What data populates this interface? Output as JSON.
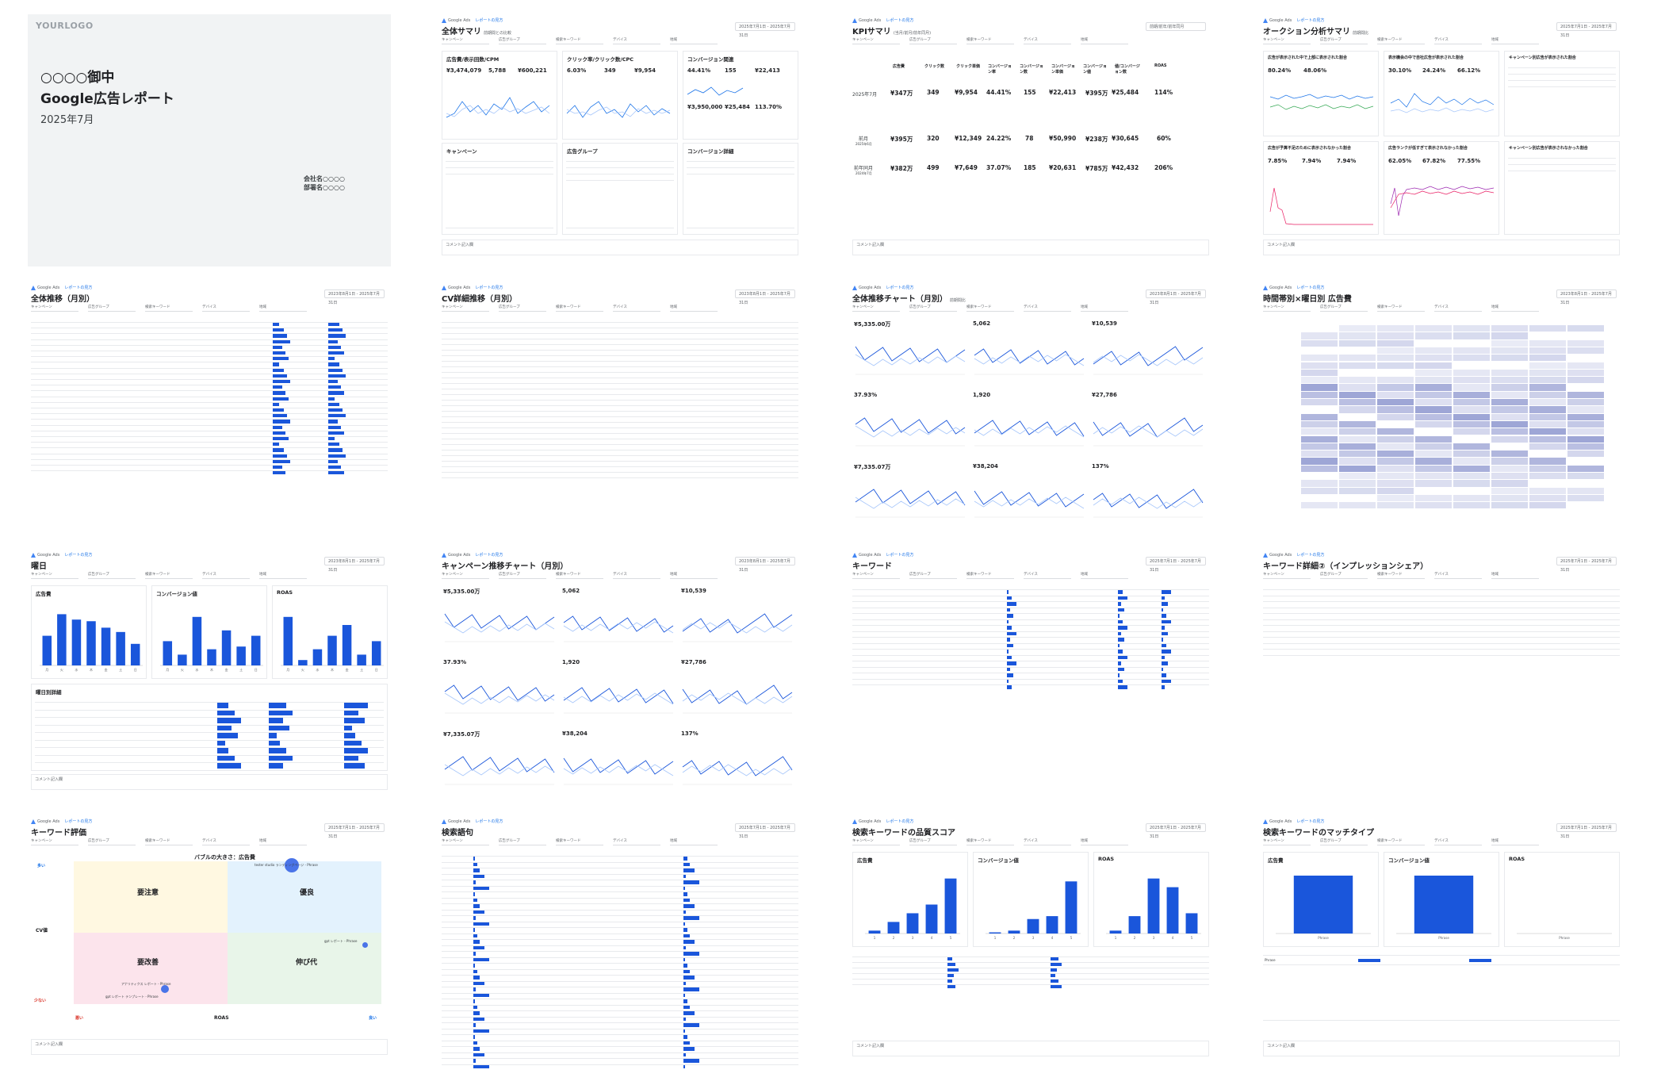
{
  "cover": {
    "logo": "YOURLOGO",
    "client": "○○○○御中",
    "title": "Google広告レポート",
    "period": "2025年7月",
    "company": "会社名○○○○",
    "department": "部署名○○○○"
  },
  "common": {
    "brand": "Google Ads",
    "link": "レポートの見方",
    "comment": "コメント記入欄",
    "filters": [
      "キャンペーン",
      "広告グループ",
      "検索キーワード",
      "デバイス",
      "地域"
    ],
    "date_month": "2025年7月1日 - 2025年7月31日",
    "date_range": "2023年8月1日 - 2025年7月31日"
  },
  "slides": [
    {
      "id": "overview",
      "title": "全体サマリ",
      "subtitle": "前期間との比較",
      "panels": [
        {
          "title": "広告費/表示回数/CPM",
          "values": [
            "¥3,474,079",
            "5,788",
            "¥600,221"
          ],
          "labels": [
            "広告費",
            "表示回数",
            "CPM"
          ]
        },
        {
          "title": "クリック率/クリック数/CPC",
          "values": [
            "6.03%",
            "349",
            "¥9,954"
          ],
          "labels": [
            "クリック率",
            "クリック数",
            "CPC"
          ]
        },
        {
          "title": "コンバージョン関連",
          "values": [
            "44.41%",
            "155",
            "¥22,413",
            "¥3,950,000",
            "¥25,484",
            "113.70%"
          ],
          "labels": [
            "CVR",
            "CV",
            "CPA",
            "CV値",
            "価値/CV",
            "ROAS"
          ]
        }
      ],
      "tables": [
        "キャンペーン",
        "広告グループ",
        "コンバージョン詳細"
      ]
    },
    {
      "id": "kpi",
      "title": "KPIサマリ",
      "subtitle": "(当月/前月/前年同月)",
      "columns": [
        "広告費",
        "クリック数",
        "クリック単価",
        "コンバージョン率",
        "コンバージョン数",
        "コンバージョン単価",
        "コンバージョン値",
        "値/コンバージョン数",
        "ROAS"
      ],
      "rows": [
        {
          "label": "2025年7月",
          "values": [
            "¥347万",
            "349",
            "¥9,954",
            "44.41%",
            "155",
            "¥22,413",
            "¥395万",
            "¥25,484",
            "114%"
          ]
        },
        {
          "label": "前月",
          "sub": "2025年6月",
          "values": [
            "¥395万",
            "320",
            "¥12,349",
            "24.22%",
            "78",
            "¥50,990",
            "¥238万",
            "¥30,645",
            "60%"
          ]
        },
        {
          "label": "前年同月",
          "sub": "2024年7月",
          "values": [
            "¥382万",
            "499",
            "¥7,649",
            "37.07%",
            "185",
            "¥20,631",
            "¥785万",
            "¥42,432",
            "206%"
          ]
        }
      ],
      "button": "前期/前年/前年同月"
    },
    {
      "id": "auction",
      "title": "オークション分析サマリ",
      "subtitle": "前期間比",
      "panels": [
        {
          "title": "広告が表示された中で上部に表示された割合",
          "values": [
            "80.24%",
            "48.06%"
          ]
        },
        {
          "title": "表示機会の中で自社広告が表示された割合",
          "values": [
            "30.10%",
            "24.24%",
            "66.12%"
          ]
        },
        {
          "title": "キャンペーン別広告が表示された割合",
          "values": []
        },
        {
          "title": "広告が予算不足のために表示されなかった割合",
          "values": [
            "7.85%",
            "7.94%",
            "7.94%"
          ]
        },
        {
          "title": "広告ランクが低すぎて表示されなかった割合",
          "values": [
            "62.05%",
            "67.82%",
            "77.55%"
          ]
        },
        {
          "title": "キャンペーン別広告が表示されなかった割合",
          "values": []
        }
      ]
    },
    {
      "id": "monthly",
      "title": "全体推移（月別）"
    },
    {
      "id": "cv_monthly",
      "title": "CV詳細推移（月別）"
    },
    {
      "id": "trend_chart",
      "title": "全体推移チャート（月別）",
      "subtitle": "前期間比",
      "values": [
        "¥5,335.00万",
        "5,062",
        "¥10,539",
        "37.93%",
        "1,920",
        "¥27,786",
        "¥7,335.07万",
        "¥38,204",
        "137%"
      ]
    },
    {
      "id": "heatmap",
      "title": "時間帯別×曜日別 広告費"
    },
    {
      "id": "weekday",
      "title": "曜日",
      "panels": [
        "広告費",
        "コンバージョン値",
        "ROAS"
      ],
      "table": "曜日別詳細"
    },
    {
      "id": "campaign_trend",
      "title": "キャンペーン推移チャート（月別）",
      "values": [
        "¥5,335.00万",
        "5,062",
        "¥10,539",
        "37.93%",
        "1,920",
        "¥27,786",
        "¥7,335.07万",
        "¥38,204",
        "137%"
      ]
    },
    {
      "id": "keyword",
      "title": "キーワード"
    },
    {
      "id": "keyword2",
      "title": "キーワード詳細②（インプレッションシェア）"
    },
    {
      "id": "keyword_eval",
      "title": "キーワード評価",
      "bubble_title": "バブルの大きさ：広告費",
      "y_label": "CV値",
      "x_label": "ROAS",
      "y_high": "多い",
      "y_low": "少ない",
      "x_low": "悪い",
      "x_high": "良い",
      "quadrants": [
        "要注意",
        "優良",
        "要改善",
        "伸び代"
      ],
      "bubbles": [
        "tester studio ランディングページ - Phrase",
        "gpt レポート - Phrase",
        "アナリティクス レポート - Phrase",
        "gpt レポート テンプレート - Phrase"
      ]
    },
    {
      "id": "search_terms",
      "title": "検索語句"
    },
    {
      "id": "quality",
      "title": "検索キーワードの品質スコア",
      "panels": [
        "広告費",
        "コンバージョン値",
        "ROAS"
      ]
    },
    {
      "id": "match",
      "title": "検索キーワードのマッチタイプ",
      "panels": [
        "広告費",
        "コンバージョン値",
        "ROAS"
      ],
      "category": "Phrase"
    }
  ],
  "chart_data": [
    {
      "type": "bar",
      "title": "広告費",
      "categories": [
        "月",
        "火",
        "水",
        "木",
        "金",
        "土",
        "日"
      ],
      "values": [
        0.55,
        0.95,
        0.85,
        0.82,
        0.7,
        0.62,
        0.4
      ]
    },
    {
      "type": "bar",
      "title": "コンバージョン値",
      "categories": [
        "月",
        "火",
        "水",
        "木",
        "金",
        "土",
        "日"
      ],
      "values": [
        0.45,
        0.2,
        0.9,
        0.3,
        0.65,
        0.35,
        0.55
      ]
    },
    {
      "type": "bar",
      "title": "ROAS",
      "categories": [
        "月",
        "火",
        "水",
        "木",
        "金",
        "土",
        "日"
      ],
      "values": [
        0.9,
        0.1,
        0.3,
        0.55,
        0.75,
        0.2,
        0.45
      ]
    },
    {
      "type": "bar",
      "title": "広告費",
      "categories": [
        "1",
        "2",
        "3",
        "4",
        "5"
      ],
      "values": [
        0.05,
        0.2,
        0.35,
        0.5,
        0.95
      ]
    },
    {
      "type": "bar",
      "title": "コンバージョン値",
      "categories": [
        "1",
        "2",
        "3",
        "4",
        "5"
      ],
      "values": [
        0.02,
        0.05,
        0.25,
        0.3,
        0.9
      ]
    },
    {
      "type": "bar",
      "title": "ROAS",
      "categories": [
        "1",
        "2",
        "3",
        "4",
        "5"
      ],
      "values": [
        0.05,
        0.3,
        0.95,
        0.8,
        0.35
      ]
    },
    {
      "type": "bar",
      "title": "広告費",
      "categories": [
        "Phrase"
      ],
      "values": [
        1
      ]
    },
    {
      "type": "bar",
      "title": "コンバージョン値",
      "categories": [
        "Phrase"
      ],
      "values": [
        1
      ]
    },
    {
      "type": "bar",
      "title": "ROAS",
      "categories": [
        "Phrase"
      ],
      "values": [
        0
      ]
    }
  ]
}
